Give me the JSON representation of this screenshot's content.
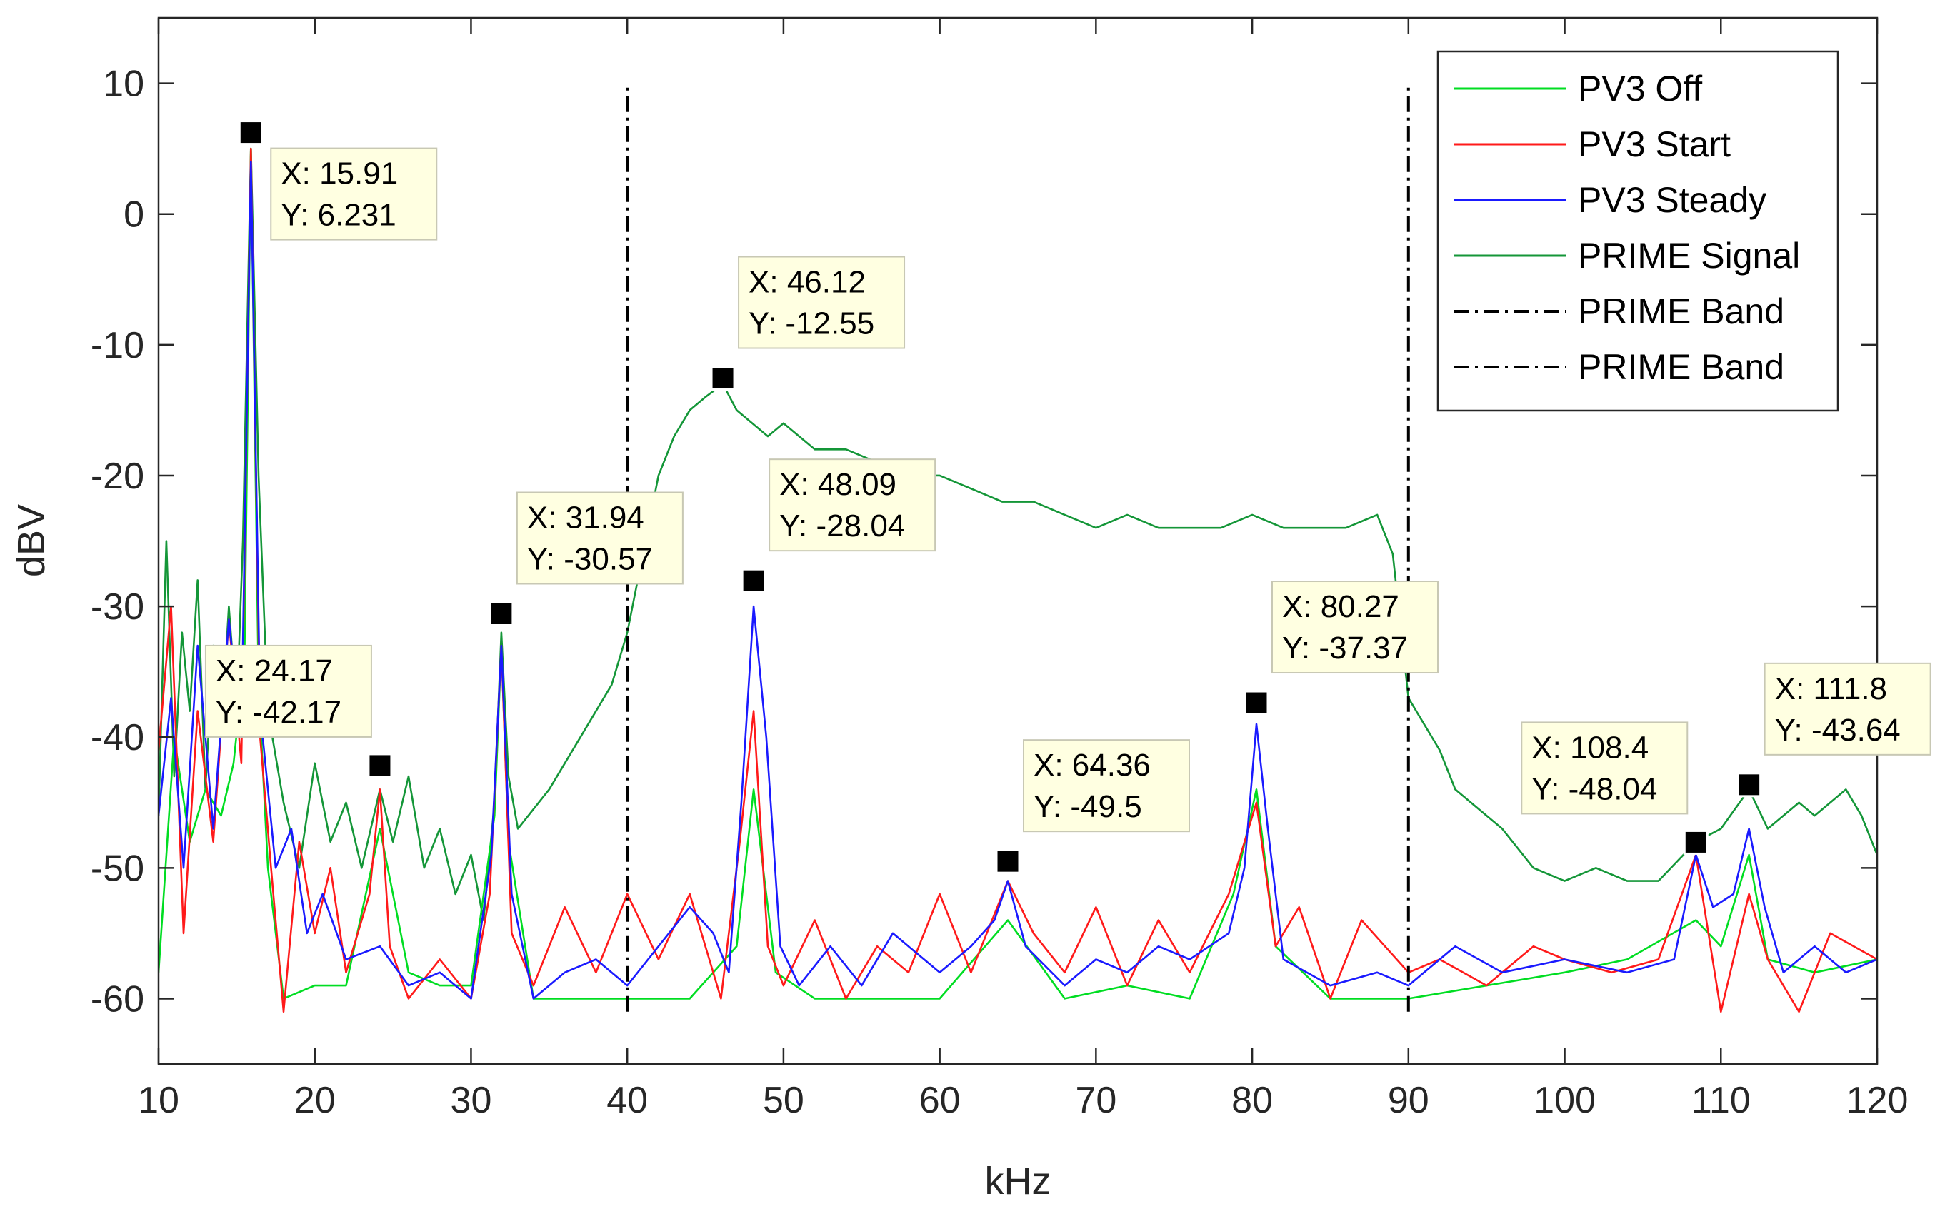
{
  "chart_data": {
    "type": "line",
    "title": "",
    "xlabel": "kHz",
    "ylabel": "dBV",
    "xlim": [
      10,
      120
    ],
    "ylim": [
      -65,
      15
    ],
    "xticks": [
      10,
      20,
      30,
      40,
      50,
      60,
      70,
      80,
      90,
      100,
      110,
      120
    ],
    "yticks": [
      10,
      0,
      -10,
      -20,
      -30,
      -40,
      -50,
      -60
    ],
    "grid": false,
    "legend_position": "top-right",
    "colors": {
      "pv3_off": "#00dd22",
      "pv3_start": "#ff1a1a",
      "pv3_steady": "#1a1aff",
      "prime_signal": "#149638",
      "prime_band": "#000000"
    },
    "series": [
      {
        "name": "PV3 Off",
        "x": [
          10,
          11,
          12,
          13,
          14,
          14.8,
          15.5,
          15.91,
          16.4,
          17,
          18,
          20,
          22,
          24.17,
          26,
          28,
          30,
          31.5,
          31.94,
          32.4,
          34,
          38,
          44,
          47,
          48.09,
          49.5,
          52,
          56,
          60,
          64.36,
          68,
          72,
          76,
          78.8,
          80.27,
          81.5,
          85,
          90,
          95,
          100,
          104,
          108.4,
          110,
          111.8,
          113,
          116,
          120
        ],
        "y": [
          -58,
          -40,
          -48,
          -44,
          -46,
          -42,
          -34,
          5,
          -36,
          -50,
          -60,
          -59,
          -59,
          -47,
          -58,
          -59,
          -59,
          -46,
          -33,
          -48,
          -60,
          -60,
          -60,
          -56,
          -44,
          -58,
          -60,
          -60,
          -60,
          -54,
          -60,
          -59,
          -60,
          -52,
          -44,
          -56,
          -60,
          -60,
          -59,
          -58,
          -57,
          -54,
          -56,
          -49,
          -57,
          -58,
          -57
        ]
      },
      {
        "name": "PV3 Start",
        "x": [
          10,
          10.8,
          11.6,
          12.5,
          13.5,
          14.5,
          15.3,
          15.91,
          16.5,
          17.2,
          18,
          19,
          20,
          21,
          22,
          23.5,
          24.17,
          24.8,
          26,
          28,
          30,
          31.2,
          31.94,
          32.6,
          34,
          36,
          38,
          40,
          42,
          44,
          46,
          47.2,
          48.09,
          49,
          50,
          52,
          54,
          56,
          58,
          60,
          62,
          64.36,
          66,
          68,
          70,
          72,
          74,
          76,
          78.5,
          80.27,
          81.5,
          83,
          85,
          87,
          90,
          92,
          95,
          98,
          100,
          103,
          106,
          108.4,
          110,
          111.8,
          113,
          115,
          117,
          120
        ],
        "y": [
          -41,
          -30,
          -55,
          -38,
          -48,
          -31,
          -42,
          5,
          -40,
          -50,
          -61,
          -48,
          -55,
          -50,
          -58,
          -52,
          -44,
          -56,
          -60,
          -57,
          -60,
          -52,
          -33,
          -55,
          -59,
          -53,
          -58,
          -52,
          -57,
          -52,
          -60,
          -48,
          -38,
          -56,
          -59,
          -54,
          -60,
          -56,
          -58,
          -52,
          -58,
          -51,
          -55,
          -58,
          -53,
          -59,
          -54,
          -58,
          -52,
          -45,
          -56,
          -53,
          -60,
          -54,
          -58,
          -57,
          -59,
          -56,
          -57,
          -58,
          -57,
          -49,
          -61,
          -52,
          -57,
          -61,
          -55,
          -57
        ]
      },
      {
        "name": "PV3 Steady",
        "x": [
          10,
          10.8,
          11.6,
          12.5,
          13.5,
          14.5,
          15.3,
          15.91,
          16.5,
          17.5,
          18.5,
          19.5,
          20.5,
          22,
          24.17,
          26,
          28,
          30,
          31.3,
          31.94,
          32.6,
          34,
          36,
          38,
          40,
          42,
          44,
          45.5,
          46.5,
          47.3,
          48.09,
          48.9,
          49.8,
          51,
          53,
          55,
          57,
          60,
          62,
          63.5,
          64.36,
          65.5,
          68,
          70,
          72,
          74,
          76,
          78.5,
          79.5,
          80.27,
          81,
          82,
          85,
          88,
          90,
          93,
          96,
          100,
          104,
          107,
          108.4,
          109.5,
          110.8,
          111.8,
          112.8,
          114,
          116,
          118,
          120
        ],
        "y": [
          -46,
          -37,
          -50,
          -33,
          -47,
          -31,
          -40,
          4,
          -38,
          -50,
          -47,
          -55,
          -52,
          -57,
          -56,
          -59,
          -58,
          -60,
          -49,
          -33,
          -52,
          -60,
          -58,
          -57,
          -59,
          -56,
          -53,
          -55,
          -58,
          -45,
          -30,
          -40,
          -56,
          -59,
          -56,
          -59,
          -55,
          -58,
          -56,
          -54,
          -51,
          -56,
          -59,
          -57,
          -58,
          -56,
          -57,
          -55,
          -50,
          -39,
          -47,
          -57,
          -59,
          -58,
          -59,
          -56,
          -58,
          -57,
          -58,
          -57,
          -49,
          -53,
          -52,
          -47,
          -53,
          -58,
          -56,
          -58,
          -57
        ]
      },
      {
        "name": "PRIME Signal",
        "x": [
          10,
          10.5,
          11,
          11.5,
          12,
          12.5,
          13,
          13.5,
          14,
          14.5,
          15,
          15.4,
          15.91,
          16.4,
          17,
          18,
          19,
          20,
          21,
          22,
          23,
          24.17,
          25,
          26,
          27,
          28,
          29,
          30,
          30.8,
          31.5,
          31.94,
          32.4,
          33,
          35,
          37,
          39,
          40,
          41,
          42,
          43,
          44,
          45,
          46.12,
          47,
          48,
          49,
          50,
          52,
          54,
          56,
          58,
          60,
          62,
          64,
          66,
          68,
          70,
          72,
          74,
          76,
          78,
          80,
          82,
          84,
          86,
          88,
          89,
          90,
          91,
          92,
          93,
          94,
          96,
          98,
          100,
          102,
          104,
          106,
          108.4,
          110,
          111.8,
          113,
          114,
          115,
          116,
          117,
          118,
          119,
          120
        ],
        "y": [
          -46,
          -25,
          -43,
          -32,
          -38,
          -28,
          -44,
          -33,
          -40,
          -30,
          -38,
          -25,
          5,
          -20,
          -38,
          -45,
          -50,
          -42,
          -48,
          -45,
          -50,
          -44,
          -48,
          -43,
          -50,
          -47,
          -52,
          -49,
          -54,
          -45,
          -32,
          -43,
          -47,
          -44,
          -40,
          -36,
          -32,
          -26,
          -20,
          -17,
          -15,
          -14,
          -13,
          -15,
          -16,
          -17,
          -16,
          -18,
          -18,
          -19,
          -20,
          -20,
          -21,
          -22,
          -22,
          -23,
          -24,
          -23,
          -24,
          -24,
          -24,
          -23,
          -24,
          -24,
          -24,
          -23,
          -26,
          -37,
          -39,
          -41,
          -44,
          -45,
          -47,
          -50,
          -51,
          -50,
          -51,
          -51,
          -48,
          -47,
          -44,
          -47,
          -46,
          -45,
          -46,
          -45,
          -44,
          -46,
          -49
        ]
      },
      {
        "name": "PRIME Band",
        "x": [
          40,
          40
        ],
        "y": [
          -61,
          10
        ]
      },
      {
        "name": "PRIME Band",
        "x": [
          90,
          90
        ],
        "y": [
          -61,
          10
        ]
      }
    ],
    "data_tips": [
      {
        "x": 15.91,
        "y": 6.231,
        "xtext": "X: 15.91",
        "ytext": "Y: 6.231",
        "placement": "right"
      },
      {
        "x": 24.17,
        "y": -42.17,
        "xtext": "X: 24.17",
        "ytext": "Y: -42.17",
        "placement": "upper-left"
      },
      {
        "x": 31.94,
        "y": -30.57,
        "xtext": "X: 31.94",
        "ytext": "Y: -30.57",
        "placement": "upper-right"
      },
      {
        "x": 46.12,
        "y": -12.55,
        "xtext": "X: 46.12",
        "ytext": "Y: -12.55",
        "placement": "upper-right"
      },
      {
        "x": 48.09,
        "y": -28.04,
        "xtext": "X: 48.09",
        "ytext": "Y: -28.04",
        "placement": "upper-right"
      },
      {
        "x": 64.36,
        "y": -49.5,
        "xtext": "X: 64.36",
        "ytext": "Y: -49.5",
        "placement": "upper-right"
      },
      {
        "x": 80.27,
        "y": -37.37,
        "xtext": "X: 80.27",
        "ytext": "Y: -37.37",
        "placement": "upper-right"
      },
      {
        "x": 108.4,
        "y": -48.04,
        "xtext": "X: 108.4",
        "ytext": "Y: -48.04",
        "placement": "upper-left"
      },
      {
        "x": 111.8,
        "y": -43.64,
        "xtext": "X: 111.8",
        "ytext": "Y: -43.64",
        "placement": "upper-right"
      }
    ]
  }
}
